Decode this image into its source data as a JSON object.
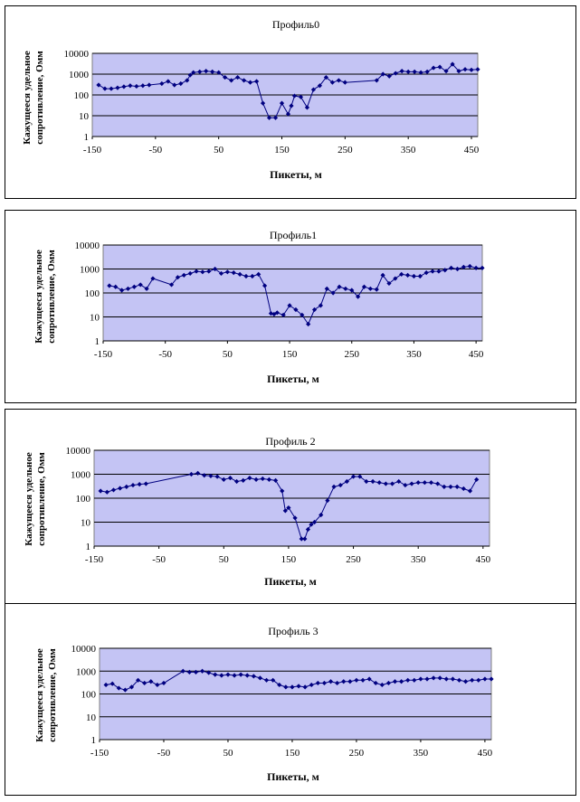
{
  "colors": {
    "plot_bg": "#c4c4f4",
    "series": "#000080",
    "grid": "#000000"
  },
  "charts": [
    {
      "title": "Профиль0",
      "xlabel": "Пикеты, м",
      "ylabel_line1": "Кажущееся удельное",
      "ylabel_line2": "сопротивление, Омм",
      "xticks": [
        "-150",
        "-50",
        "50",
        "150",
        "250",
        "350",
        "450"
      ],
      "yticks": [
        "1",
        "10",
        "100",
        "1000",
        "10000"
      ]
    },
    {
      "title": "Профиль1",
      "xlabel": "Пикеты, м",
      "ylabel_line1": "Кажущееся удельное",
      "ylabel_line2": "сопротивление, Омм",
      "xticks": [
        "-150",
        "-50",
        "50",
        "150",
        "250",
        "350",
        "450"
      ],
      "yticks": [
        "1",
        "10",
        "100",
        "1000",
        "10000"
      ]
    },
    {
      "title": "Профиль 2",
      "xlabel": "Пикеты, м",
      "ylabel_line1": "Кажущееся удельное",
      "ylabel_line2": "сопротивление, Омм",
      "xticks": [
        "-150",
        "-50",
        "50",
        "150",
        "250",
        "350",
        "450"
      ],
      "yticks": [
        "1",
        "10",
        "100",
        "1000",
        "10000"
      ]
    },
    {
      "title": "Профиль 3",
      "xlabel": "Пикеты, м",
      "ylabel_line1": "Кажущееся удельное",
      "ylabel_line2": "сопротивление, Омм",
      "xticks": [
        "-150",
        "-50",
        "50",
        "150",
        "250",
        "350",
        "450"
      ],
      "yticks": [
        "1",
        "10",
        "100",
        "1000",
        "10000"
      ]
    }
  ],
  "chart_data": [
    {
      "type": "line",
      "title": "Профиль0",
      "xlabel": "Пикеты, м",
      "ylabel": "Кажущееся удельное сопротивление, Омм",
      "xlim": [
        -150,
        460
      ],
      "ylim": [
        1,
        10000
      ],
      "yscale": "log",
      "grid": "horizontal",
      "series": [
        {
          "x": [
            -140,
            -130,
            -120,
            -110,
            -100,
            -90,
            -80,
            -70,
            -60,
            -40,
            -30,
            -20,
            -10,
            0,
            5,
            10,
            20,
            30,
            40,
            50,
            60,
            70,
            80,
            90,
            100,
            110,
            120,
            130,
            140,
            150,
            160,
            165,
            170,
            180,
            190,
            200,
            210,
            220,
            230,
            240,
            250,
            300,
            310,
            320,
            330,
            340,
            350,
            360,
            370,
            380,
            390,
            400,
            410,
            420,
            430,
            440,
            450,
            460
          ],
          "y": [
            300,
            200,
            200,
            220,
            250,
            280,
            260,
            280,
            300,
            350,
            450,
            300,
            350,
            500,
            900,
            1200,
            1300,
            1400,
            1300,
            1200,
            700,
            500,
            700,
            500,
            400,
            450,
            40,
            8,
            8,
            40,
            12,
            30,
            90,
            80,
            25,
            180,
            280,
            700,
            400,
            500,
            400,
            500,
            1000,
            800,
            1100,
            1400,
            1300,
            1300,
            1200,
            1300,
            2000,
            2200,
            1400,
            3000,
            1400,
            1700,
            1600,
            1700
          ]
        }
      ]
    },
    {
      "type": "line",
      "title": "Профиль1",
      "xlabel": "Пикеты, м",
      "ylabel": "Кажущееся удельное сопротивление, Омм",
      "xlim": [
        -150,
        460
      ],
      "ylim": [
        1,
        10000
      ],
      "yscale": "log",
      "grid": "horizontal",
      "series": [
        {
          "x": [
            -140,
            -130,
            -120,
            -110,
            -100,
            -90,
            -80,
            -70,
            -40,
            -30,
            -20,
            -10,
            0,
            10,
            20,
            30,
            40,
            50,
            60,
            70,
            80,
            90,
            100,
            110,
            120,
            125,
            130,
            140,
            150,
            160,
            170,
            180,
            190,
            200,
            210,
            220,
            230,
            240,
            250,
            260,
            270,
            280,
            290,
            300,
            310,
            320,
            330,
            340,
            350,
            360,
            370,
            380,
            390,
            400,
            410,
            420,
            430,
            440,
            450,
            460
          ],
          "y": [
            200,
            180,
            130,
            150,
            180,
            220,
            150,
            400,
            220,
            450,
            550,
            650,
            800,
            750,
            800,
            1000,
            650,
            750,
            700,
            600,
            500,
            500,
            600,
            200,
            14,
            13,
            15,
            12,
            30,
            20,
            12,
            5,
            20,
            30,
            150,
            100,
            180,
            150,
            130,
            70,
            180,
            150,
            140,
            550,
            250,
            400,
            600,
            550,
            500,
            500,
            700,
            800,
            800,
            900,
            1100,
            1000,
            1200,
            1300,
            1100,
            1100
          ]
        }
      ]
    },
    {
      "type": "line",
      "title": "Профиль 2",
      "xlabel": "Пикеты, м",
      "ylabel": "Кажущееся удельное сопротивление, Омм",
      "xlim": [
        -150,
        460
      ],
      "ylim": [
        1,
        10000
      ],
      "yscale": "log",
      "grid": "horizontal",
      "series": [
        {
          "x": [
            -140,
            -130,
            -120,
            -110,
            -100,
            -90,
            -80,
            -70,
            0,
            10,
            20,
            30,
            40,
            50,
            60,
            70,
            80,
            90,
            100,
            110,
            120,
            130,
            140,
            145,
            150,
            160,
            170,
            175,
            180,
            185,
            190,
            200,
            210,
            220,
            230,
            240,
            250,
            260,
            270,
            280,
            290,
            300,
            310,
            320,
            330,
            340,
            350,
            360,
            370,
            380,
            390,
            400,
            410,
            420,
            430,
            440
          ],
          "y": [
            200,
            180,
            220,
            260,
            300,
            350,
            380,
            400,
            1000,
            1100,
            900,
            850,
            800,
            600,
            700,
            500,
            550,
            700,
            600,
            650,
            600,
            550,
            200,
            30,
            40,
            15,
            2,
            2,
            5,
            8,
            10,
            20,
            80,
            300,
            350,
            500,
            800,
            800,
            500,
            500,
            450,
            400,
            400,
            500,
            350,
            400,
            450,
            450,
            450,
            400,
            300,
            300,
            300,
            250,
            200,
            600
          ]
        }
      ]
    },
    {
      "type": "line",
      "title": "Профиль 3",
      "xlabel": "Пикеты, м",
      "ylabel": "Кажущееся удельное сопротивление, Омм",
      "xlim": [
        -150,
        460
      ],
      "ylim": [
        1,
        10000
      ],
      "yscale": "log",
      "grid": "horizontal",
      "series": [
        {
          "x": [
            -140,
            -130,
            -120,
            -110,
            -100,
            -90,
            -80,
            -70,
            -60,
            -50,
            -20,
            -10,
            0,
            10,
            20,
            30,
            40,
            50,
            60,
            70,
            80,
            90,
            100,
            110,
            120,
            130,
            140,
            150,
            160,
            170,
            180,
            190,
            200,
            210,
            220,
            230,
            240,
            250,
            260,
            270,
            280,
            290,
            300,
            310,
            320,
            330,
            340,
            350,
            360,
            370,
            380,
            390,
            400,
            410,
            420,
            430,
            440,
            450,
            460
          ],
          "y": [
            250,
            280,
            180,
            150,
            200,
            400,
            300,
            350,
            250,
            300,
            1000,
            900,
            900,
            1000,
            850,
            700,
            650,
            700,
            650,
            700,
            650,
            600,
            500,
            400,
            400,
            250,
            200,
            200,
            220,
            200,
            250,
            300,
            300,
            350,
            300,
            350,
            350,
            400,
            400,
            450,
            300,
            250,
            300,
            350,
            350,
            400,
            400,
            450,
            450,
            500,
            500,
            450,
            450,
            400,
            350,
            400,
            400,
            450,
            450
          ]
        }
      ]
    }
  ]
}
